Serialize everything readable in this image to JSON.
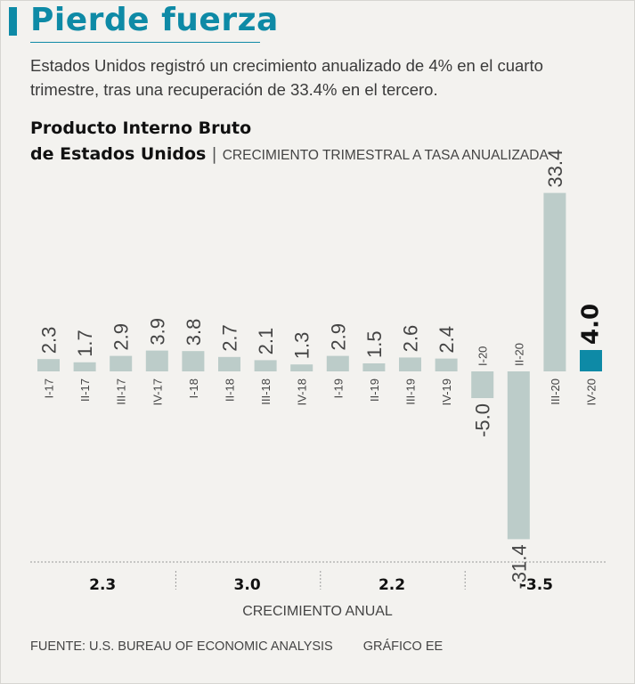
{
  "header": {
    "title": "Pierde fuerza",
    "subtitle": "Estados Unidos registró un crecimiento anualizado de 4% en el cuarto trimestre, tras una recuperación de 33.4% en el tercero."
  },
  "chart_title": {
    "line1": "Producto Interno Bruto",
    "line2": "de Estados Unidos",
    "separator": "|",
    "subtitle": "CRECIMIENTO TRIMESTRAL A TASA ANUALIZADA"
  },
  "colors": {
    "accent": "#0e8aa6",
    "bar": "#bcccc9",
    "highlight_bar": "#0e8aa6",
    "background": "#f3f2ef"
  },
  "chart_data": {
    "type": "bar",
    "title": "Producto Interno Bruto de Estados Unidos",
    "subtitle": "CRECIMIENTO TRIMESTRAL A TASA ANUALIZADA",
    "xlabel": "",
    "ylabel": "",
    "categories": [
      "I-17",
      "II-17",
      "III-17",
      "IV-17",
      "I-18",
      "II-18",
      "III-18",
      "IV-18",
      "I-19",
      "II-19",
      "III-19",
      "IV-19",
      "I-20",
      "II-20",
      "III-20",
      "IV-20"
    ],
    "values": [
      2.3,
      1.7,
      2.9,
      3.9,
      3.8,
      2.7,
      2.1,
      1.3,
      2.9,
      1.5,
      2.6,
      2.4,
      -5.0,
      -31.4,
      33.4,
      4.0
    ],
    "value_labels": [
      "2.3",
      "1.7",
      "2.9",
      "3.9",
      "3.8",
      "2.7",
      "2.1",
      "1.3",
      "2.9",
      "1.5",
      "2.6",
      "2.4",
      "-5.0",
      "-31.4",
      "33.4",
      "4.0"
    ],
    "highlight_category": "IV-20",
    "ylim": [
      -31.4,
      33.4
    ],
    "grid": false,
    "annual_growth": [
      {
        "year": "2017",
        "label": "2.3",
        "value": 2.3
      },
      {
        "year": "2018",
        "label": "3.0",
        "value": 3.0
      },
      {
        "year": "2019",
        "label": "2.2",
        "value": 2.2
      },
      {
        "year": "2020",
        "label": "-3.5",
        "value": -3.5
      }
    ],
    "annual_caption": "CRECIMIENTO ANUAL"
  },
  "footer": {
    "source": "FUENTE: U.S. BUREAU OF ECONOMIC ANALYSIS",
    "credit": "GRÁFICO EE"
  }
}
